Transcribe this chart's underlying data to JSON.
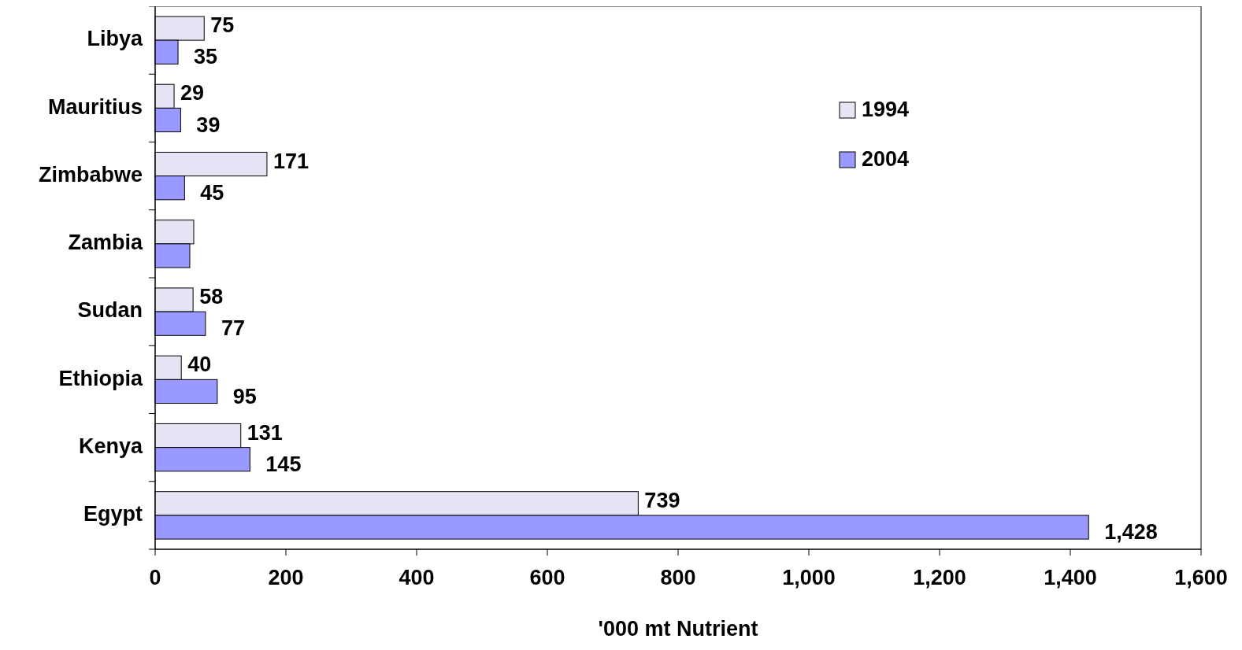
{
  "chart_data": {
    "type": "bar",
    "orientation": "horizontal",
    "xlabel": "'000 mt Nutrient",
    "categories": [
      "Libya",
      "Mauritius",
      "Zimbabwe",
      "Zambia",
      "Sudan",
      "Ethiopia",
      "Kenya",
      "Egypt"
    ],
    "series": [
      {
        "name": "1994",
        "color": "#e4e4f4",
        "values": [
          75,
          29,
          171,
          59,
          58,
          40,
          131,
          739
        ],
        "value_labels": [
          "75",
          "29",
          "171",
          null,
          "58",
          "40",
          "131",
          "739"
        ]
      },
      {
        "name": "2004",
        "color": "#9999ff",
        "values": [
          35,
          39,
          45,
          53,
          77,
          95,
          145,
          1428
        ],
        "value_labels": [
          "35",
          "39",
          "45",
          null,
          "77",
          "95",
          "145",
          "1,428"
        ]
      }
    ],
    "xlim": [
      0,
      1600
    ],
    "xticks": [
      0,
      {
        "value": 200,
        "label": "200"
      },
      {
        "value": 400,
        "label": "400"
      },
      {
        "value": 600,
        "label": "600"
      },
      {
        "value": 800,
        "label": "800"
      },
      {
        "value": 1000,
        "label": "1,000"
      },
      {
        "value": 1200,
        "label": "1,200"
      },
      {
        "value": 1400,
        "label": "1,400"
      },
      {
        "value": 1600,
        "label": "1,600"
      }
    ],
    "legend": "top right",
    "grid": false
  }
}
